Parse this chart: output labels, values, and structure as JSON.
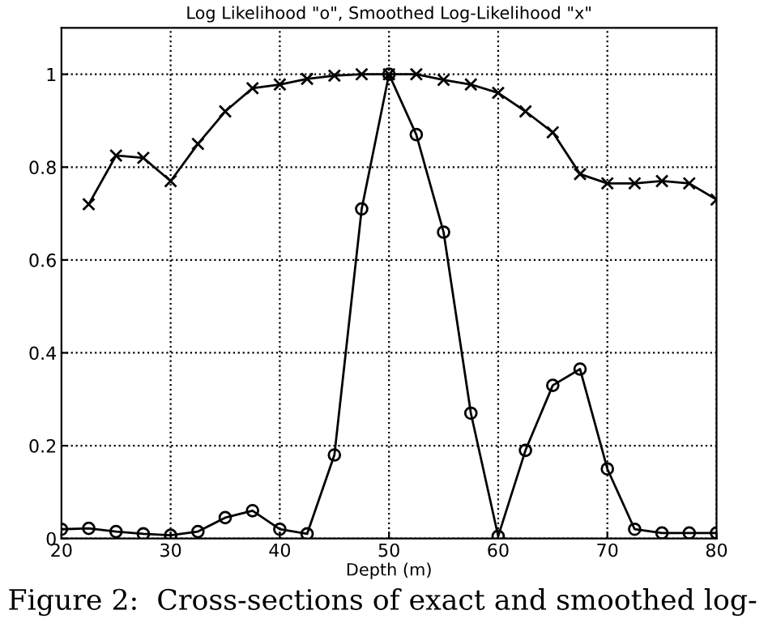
{
  "chart_data": {
    "type": "line",
    "title": "Log Likelihood \"o\", Smoothed Log-Likelihood \"x\"",
    "xlabel": "Depth (m)",
    "series": [
      {
        "color": "#000000",
        "marker": "circle",
        "x": [
          20,
          22.5,
          25,
          27.5,
          30,
          32.5,
          35,
          37.5,
          40,
          42.5,
          45,
          47.5,
          50,
          52.5,
          55,
          57.5,
          60,
          62.5,
          65,
          67.5,
          70,
          72.5,
          75,
          77.5,
          80
        ],
        "values": [
          0.02,
          0.022,
          0.015,
          0.01,
          0.007,
          0.015,
          0.045,
          0.06,
          0.02,
          0.01,
          0.18,
          0.71,
          1.0,
          0.87,
          0.66,
          0.27,
          0.005,
          0.19,
          0.33,
          0.365,
          0.15,
          0.02,
          0.012,
          0.012,
          0.012
        ]
      },
      {
        "color": "#000000",
        "marker": "cross",
        "x": [
          22.5,
          25,
          27.5,
          30,
          32.5,
          35,
          37.5,
          40,
          42.5,
          45,
          47.5,
          50,
          52.5,
          55,
          57.5,
          60,
          62.5,
          65,
          67.5,
          70,
          72.5,
          75,
          77.5,
          80
        ],
        "values": [
          0.72,
          0.825,
          0.82,
          0.77,
          0.85,
          0.92,
          0.97,
          0.978,
          0.99,
          0.997,
          1.0,
          1.0,
          1.0,
          0.988,
          0.978,
          0.96,
          0.92,
          0.875,
          0.785,
          0.765,
          0.765,
          0.77,
          0.765,
          0.73
        ]
      }
    ],
    "xlim": [
      20,
      80
    ],
    "xticks": [
      20,
      30,
      40,
      50,
      60,
      70,
      80
    ],
    "ylim": [
      0,
      1.1
    ],
    "yticks": [
      0,
      0.2,
      0.4,
      0.6,
      0.8,
      1
    ],
    "grid": true,
    "line_style": "solid",
    "legend": false,
    "annotations": [
      "Figure 2:  Cross-sections of exact and smoothed log-"
    ]
  }
}
